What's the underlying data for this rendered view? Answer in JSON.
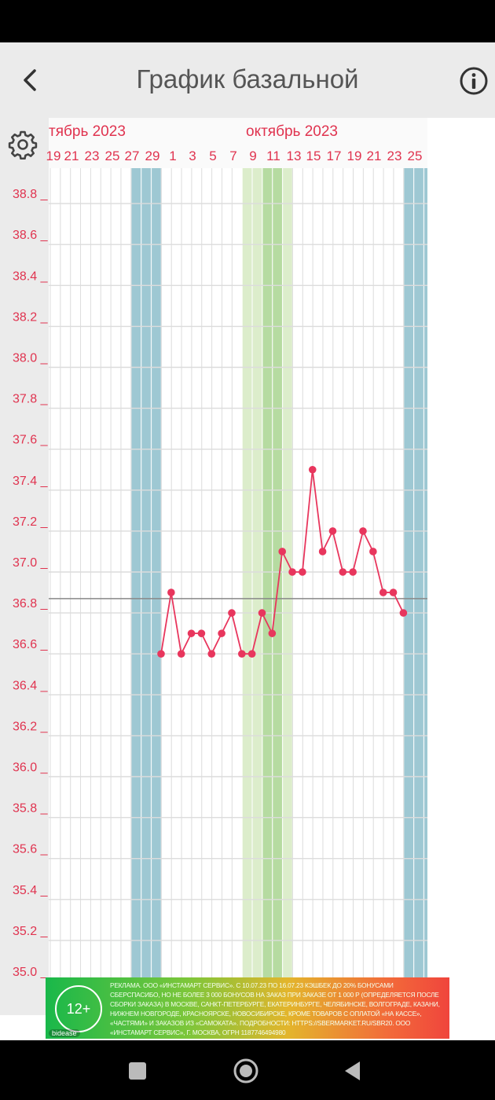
{
  "app_bar": {
    "title": "График базальной"
  },
  "chart_data": {
    "type": "line",
    "month_labels": [
      "тябрь 2023",
      "октябрь 2023"
    ],
    "x_tick_labels": [
      "19",
      "21",
      "23",
      "25",
      "27",
      "29",
      "1",
      "3",
      "5",
      "7",
      "9",
      "11",
      "13",
      "15",
      "17",
      "19",
      "21",
      "23",
      "25"
    ],
    "y_tick_labels": [
      "38.8",
      "38.6",
      "38.4",
      "38.2",
      "38.0",
      "37.8",
      "37.6",
      "37.4",
      "37.2",
      "37.0",
      "36.8",
      "36.6",
      "36.4",
      "36.2",
      "36.0",
      "35.8",
      "35.6",
      "35.4",
      "35.2",
      "35.0"
    ],
    "ylim": [
      35.0,
      38.8
    ],
    "coverline": 36.87,
    "days": [
      "30",
      "1",
      "2",
      "3",
      "4",
      "5",
      "6",
      "7",
      "8",
      "9",
      "10",
      "11",
      "12",
      "13",
      "14",
      "15",
      "16",
      "17",
      "18",
      "19",
      "20",
      "21",
      "22",
      "23",
      "24"
    ],
    "values": [
      36.6,
      36.9,
      36.6,
      36.7,
      36.7,
      36.6,
      36.7,
      36.8,
      36.6,
      36.6,
      36.8,
      36.7,
      37.1,
      37.0,
      37.0,
      37.5,
      37.1,
      37.2,
      37.0,
      37.0,
      37.2,
      37.1,
      36.9,
      36.9,
      36.8
    ],
    "colors": {
      "menstruation": "#9ec8d3",
      "fertile": "#dcedcb",
      "fertile_peak": "#b6dba1",
      "line": "#e8365d",
      "grid": "#dcdcdc",
      "labels": "#e0334f"
    }
  },
  "ad": {
    "badge": "12+",
    "brand": "bidease",
    "text": "РЕКЛАМА. ООО «ИНСТАМАРТ СЕРВИС». С 10.07.23 ПО 16.07.23 КЭШБЕК ДО 20% БОНУСАМИ СБЕРСПАСИБО, НО НЕ БОЛЕЕ 3 000 БОНУСОВ НА ЗАКАЗ ПРИ ЗАКАЗЕ ОТ 1 000 Р (ОПРЕДЕЛЯЕТСЯ ПОСЛЕ СБОРКИ ЗАКАЗА) В МОСКВЕ, САНКТ-ПЕТЕРБУРГЕ, ЕКАТЕРИНБУРГЕ, ЧЕЛЯБИНСКЕ, ВОЛГОГРАДЕ, КАЗАНИ, НИЖНЕМ НОВГОРОДЕ, КРАСНОЯРСКЕ, НОВОСИБИРСКЕ, КРОМЕ ТОВАРОВ С ОПЛАТОЙ «НА КАССЕ», «ЧАСТЯМИ» И ЗАКАЗОВ ИЗ «САМОКАТА». ПОДРОБНОСТИ: HTTPS://SBERMARKET.RU/SBR20. ООО «ИНСТАМАРТ СЕРВИС», Г. МОСКВА, ОГРН 1187746494980"
  }
}
